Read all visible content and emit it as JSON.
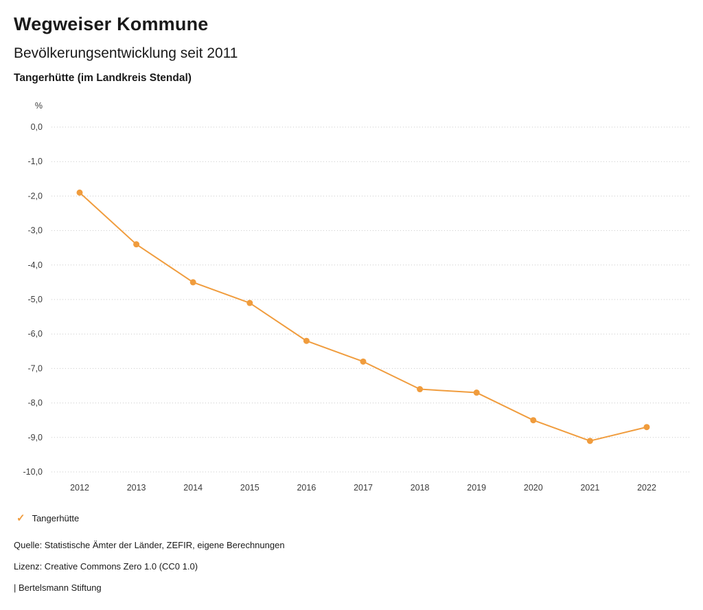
{
  "header": {
    "title": "Wegweiser Kommune",
    "subtitle": "Bevölkerungsentwicklung seit 2011",
    "location": "Tangerhütte (im Landkreis Stendal)"
  },
  "chart_data": {
    "type": "line",
    "title": "Bevölkerungsentwicklung seit 2011",
    "subtitle": "Tangerhütte (im Landkreis Stendal)",
    "unit_label": "%",
    "x": [
      2012,
      2013,
      2014,
      2015,
      2016,
      2017,
      2018,
      2019,
      2020,
      2021,
      2022
    ],
    "series": [
      {
        "name": "Tangerhütte",
        "color": "#f09c3d",
        "values": [
          -1.9,
          -3.4,
          -4.5,
          -5.1,
          -6.2,
          -6.8,
          -7.6,
          -7.7,
          -8.5,
          -9.1,
          -8.7
        ]
      }
    ],
    "ylim": [
      -10,
      0
    ],
    "ytick_step": 1,
    "ytick_labels": [
      "0,0",
      "-1,0",
      "-2,0",
      "-3,0",
      "-4,0",
      "-5,0",
      "-6,0",
      "-7,0",
      "-8,0",
      "-9,0",
      "-10,0"
    ],
    "grid": "dotted-horizontal",
    "legend_position": "bottom-left"
  },
  "legend": {
    "items": [
      {
        "label": "Tangerhütte",
        "glyph": "✓",
        "color": "#f09c3d",
        "icon": "check-icon"
      }
    ]
  },
  "footer": {
    "source": "Quelle: Statistische Ämter der Länder, ZEFIR, eigene Berechnungen",
    "license": "Lizenz: Creative Commons Zero 1.0 (CC0 1.0)",
    "attribution": "| Bertelsmann Stiftung"
  }
}
